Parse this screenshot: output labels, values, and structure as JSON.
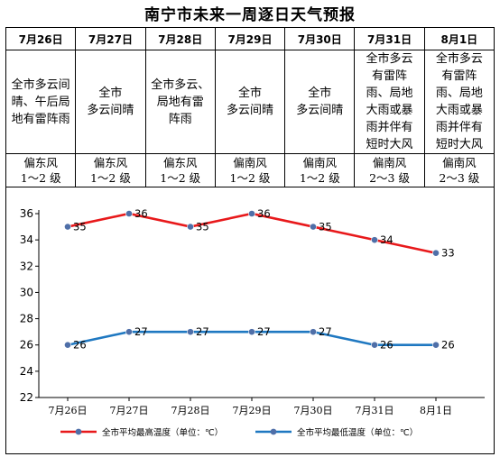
{
  "page_title": "南宁市未来一周逐日天气预报",
  "table": {
    "dates": [
      "7月26日",
      "7月27日",
      "7月28日",
      "7月29日",
      "7月30日",
      "7月31日",
      "8月1日"
    ],
    "weather": [
      "全市多云间\n晴、午后局\n地有雷阵雨",
      "全市\n多云间晴",
      "全市多云、\n局地有雷\n阵雨",
      "全市\n多云间晴",
      "全市\n多云间晴",
      "全市多云\n有雷阵\n雨、局地\n大雨或暴\n雨并伴有\n短时大风",
      "全市多云\n有雷阵\n雨、局地\n大雨或暴\n雨并伴有\n短时大风"
    ],
    "wind": [
      "偏东风\n1～2 级",
      "偏东风\n1～2 级",
      "偏东风\n1～2 级",
      "偏南风\n1～2 级",
      "偏南风\n1～2 级",
      "偏南风\n2～3 级",
      "偏南风\n2～3 级"
    ]
  },
  "chart_data": {
    "type": "line",
    "categories": [
      "7月26日",
      "7月27日",
      "7月28日",
      "7月29日",
      "7月30日",
      "7月31日",
      "8月1日"
    ],
    "series": [
      {
        "name": "全市平均最高温度（单位：℃）",
        "values": [
          35,
          36,
          35,
          36,
          35,
          34,
          33
        ],
        "color": "#e8191b"
      },
      {
        "name": "全市平均最低温度（单位：℃）",
        "values": [
          26,
          27,
          27,
          27,
          27,
          26,
          26
        ],
        "color": "#1f78c1"
      }
    ],
    "marker_color": "#4f6fa8",
    "ylim": [
      22,
      36
    ],
    "yticks": [
      22,
      24,
      26,
      28,
      30,
      32,
      34,
      36
    ],
    "grid": false,
    "legend_position": "bottom",
    "xlabel": "",
    "ylabel": ""
  }
}
